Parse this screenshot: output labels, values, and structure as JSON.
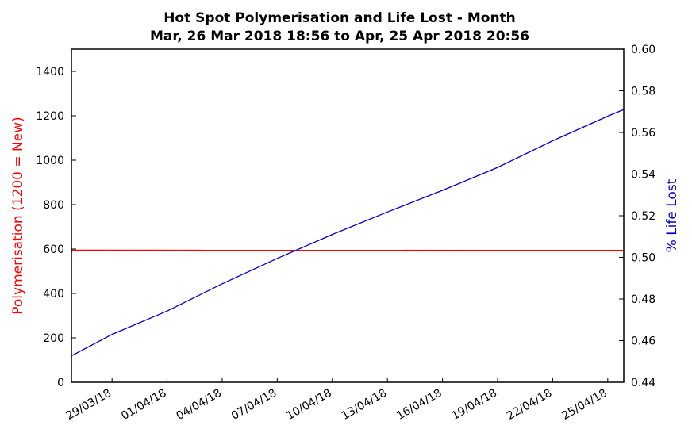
{
  "chart_data": {
    "type": "line",
    "title": "Hot Spot Polymerisation and Life Lost - Month",
    "subtitle": "Mar, 26 Mar 2018 18:56 to Apr, 25 Apr 2018 20:56",
    "x_ticks": [
      "29/03/18",
      "01/04/18",
      "04/04/18",
      "07/04/18",
      "10/04/18",
      "13/04/18",
      "16/04/18",
      "19/04/18",
      "22/04/18",
      "25/04/18"
    ],
    "x_range": [
      "2018-03-26 18:56",
      "2018-04-25 20:56"
    ],
    "left_axis": {
      "label": "Polymerisation (1200 = New)",
      "color": "#ff0000",
      "ylim": [
        0,
        1500
      ],
      "ticks": [
        "0",
        "200",
        "400",
        "600",
        "800",
        "1000",
        "1200",
        "1400"
      ]
    },
    "right_axis": {
      "label": "% Life Lost",
      "color": "#0000cc",
      "ylim": [
        0.44,
        0.6
      ],
      "ticks": [
        "0.44",
        "0.46",
        "0.48",
        "0.50",
        "0.52",
        "0.54",
        "0.56",
        "0.58",
        "0.60"
      ]
    },
    "series": [
      {
        "axis": "left",
        "color": "#ff0000",
        "points": [
          [
            "2018-03-26 18:56",
            595
          ],
          [
            "2018-04-25 20:56",
            594
          ]
        ]
      },
      {
        "axis": "right",
        "color": "#0000cc",
        "points": [
          [
            "2018-03-26 18:56",
            0.4527
          ],
          [
            "2018-03-29 00:00",
            0.463
          ],
          [
            "2018-04-01 00:00",
            0.4742
          ],
          [
            "2018-04-04 00:00",
            0.4873
          ],
          [
            "2018-04-07 00:00",
            0.4995
          ],
          [
            "2018-04-10 00:00",
            0.511
          ],
          [
            "2018-04-13 00:00",
            0.5218
          ],
          [
            "2018-04-16 00:00",
            0.5322
          ],
          [
            "2018-04-19 00:00",
            0.5432
          ],
          [
            "2018-04-22 00:00",
            0.556
          ],
          [
            "2018-04-25 00:00",
            0.5678
          ],
          [
            "2018-04-25 20:56",
            0.571
          ]
        ]
      }
    ],
    "grid": false
  }
}
